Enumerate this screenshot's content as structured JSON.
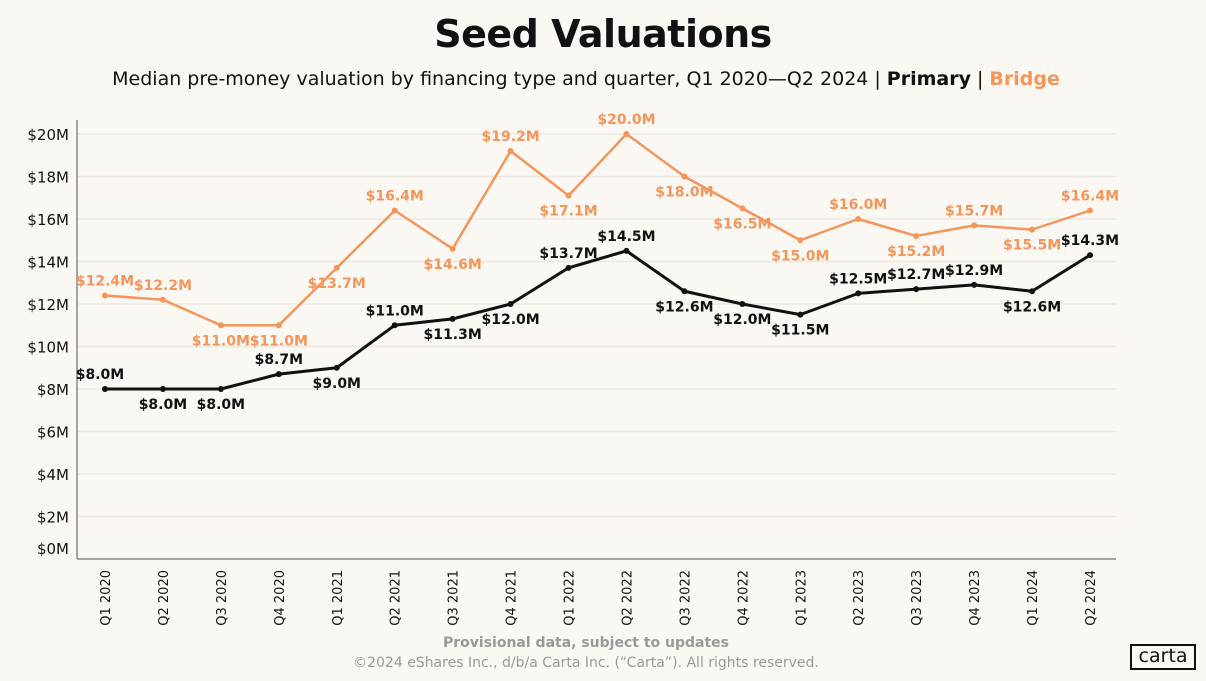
{
  "chart_data": {
    "type": "line",
    "title": "Seed Valuations",
    "subtitle": "Median pre-money valuation by financing type and quarter, Q1 2020—Q2 2024",
    "categories": [
      "Q1 2020",
      "Q2 2020",
      "Q3 2020",
      "Q4 2020",
      "Q1 2021",
      "Q2 2021",
      "Q3 2021",
      "Q4 2021",
      "Q1 2022",
      "Q2 2022",
      "Q3 2022",
      "Q4 2022",
      "Q1 2023",
      "Q2 2023",
      "Q3 2023",
      "Q4 2023",
      "Q1 2024",
      "Q2 2024"
    ],
    "series": [
      {
        "name": "Primary",
        "color": "#111111",
        "values": [
          8.0,
          8.0,
          8.0,
          8.7,
          9.0,
          11.0,
          11.3,
          12.0,
          13.7,
          14.5,
          12.6,
          12.0,
          11.5,
          12.5,
          12.7,
          12.9,
          12.6,
          14.3
        ],
        "labels": [
          "$8.0M",
          "$8.0M",
          "$8.0M",
          "$8.7M",
          "$9.0M",
          "$11.0M",
          "$11.3M",
          "$12.0M",
          "$13.7M",
          "$14.5M",
          "$12.6M",
          "$12.0M",
          "$11.5M",
          "$12.5M",
          "$12.7M",
          "$12.9M",
          "$12.6M",
          "$14.3M"
        ]
      },
      {
        "name": "Bridge",
        "color": "#f4955a",
        "values": [
          12.4,
          12.2,
          11.0,
          11.0,
          13.7,
          16.4,
          14.6,
          19.2,
          17.1,
          20.0,
          18.0,
          16.5,
          15.0,
          16.0,
          15.2,
          15.7,
          15.5,
          16.4
        ],
        "labels": [
          "$12.4M",
          "$12.2M",
          "$11.0M",
          "$11.0M",
          "$13.7M",
          "$16.4M",
          "$14.6M",
          "$19.2M",
          "$17.1M",
          "$20.0M",
          "$18.0M",
          "$16.5M",
          "$15.0M",
          "$16.0M",
          "$15.2M",
          "$15.7M",
          "$15.5M",
          "$16.4M"
        ]
      }
    ],
    "yticks": [
      0,
      2,
      4,
      6,
      8,
      10,
      12,
      14,
      16,
      18,
      20
    ],
    "ytick_labels": [
      "$0M",
      "$2M",
      "$4M",
      "$6M",
      "$8M",
      "$10M",
      "$12M",
      "$14M",
      "$16M",
      "$18M",
      "$20M"
    ],
    "ylim": [
      0,
      20
    ],
    "ylabel": "",
    "xlabel": "",
    "grid": true,
    "legend": "in subtitle"
  },
  "legend": {
    "primary": "Primary",
    "bridge": "Bridge",
    "separator": "|"
  },
  "footer": {
    "note": "Provisional data, subject to updates",
    "copyright": "©2024 eShares Inc., d/b/a Carta Inc. (“Carta”). All rights reserved."
  },
  "logo": "carta"
}
